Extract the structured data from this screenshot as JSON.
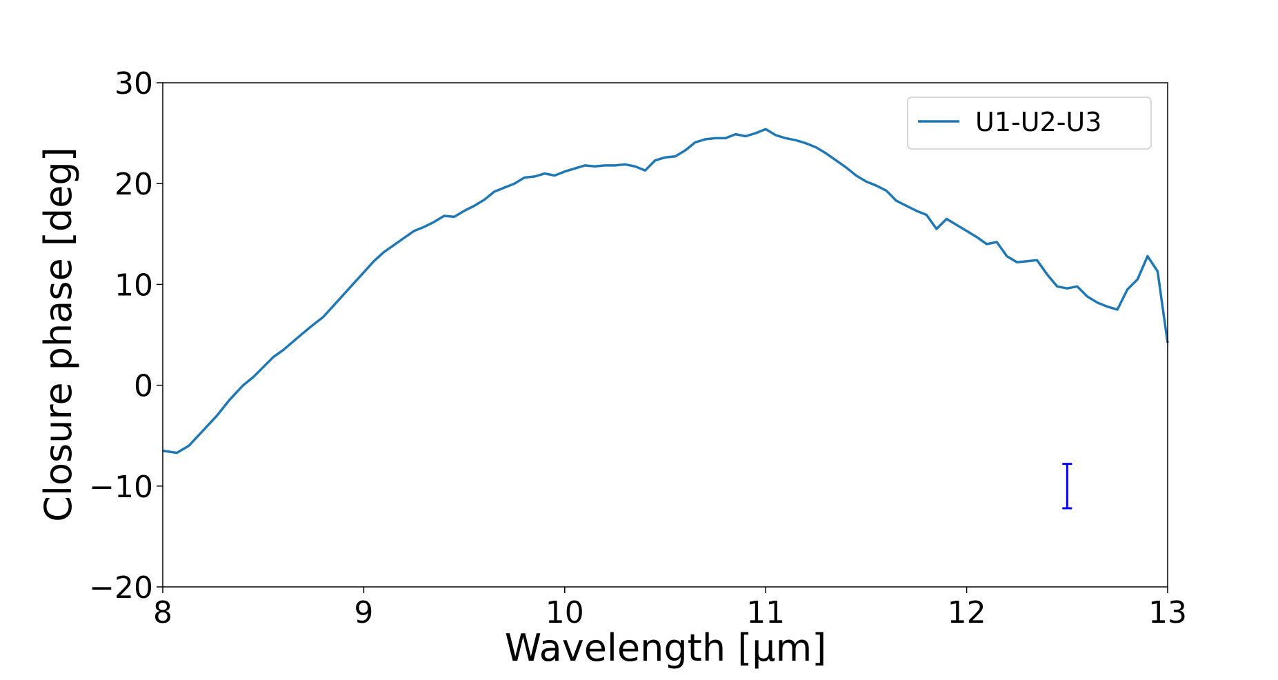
{
  "chart_data": {
    "type": "line",
    "title": "",
    "xlabel": "Wavelength [μm]",
    "ylabel": "Closure phase [deg]",
    "xlim": [
      8,
      13
    ],
    "ylim": [
      -20,
      30
    ],
    "x_ticks": [
      8,
      9,
      10,
      11,
      12,
      13
    ],
    "y_ticks": [
      -20,
      -10,
      0,
      10,
      20,
      30
    ],
    "x_tick_labels": [
      "8",
      "9",
      "10",
      "11",
      "12",
      "13"
    ],
    "y_tick_labels": [
      "−20",
      "−10",
      "0",
      "10",
      "20",
      "30"
    ],
    "grid": false,
    "legend_position": "top-right",
    "series": [
      {
        "name": "U1-U2-U3",
        "color": "#1f77b4",
        "x": [
          8.0,
          8.07,
          8.13,
          8.2,
          8.27,
          8.33,
          8.4,
          8.45,
          8.5,
          8.55,
          8.6,
          8.67,
          8.73,
          8.8,
          8.85,
          8.9,
          8.95,
          9.0,
          9.05,
          9.1,
          9.15,
          9.2,
          9.25,
          9.3,
          9.35,
          9.4,
          9.45,
          9.5,
          9.55,
          9.6,
          9.65,
          9.7,
          9.75,
          9.8,
          9.85,
          9.9,
          9.95,
          10.0,
          10.05,
          10.1,
          10.15,
          10.2,
          10.25,
          10.3,
          10.35,
          10.4,
          10.45,
          10.5,
          10.55,
          10.6,
          10.65,
          10.7,
          10.75,
          10.8,
          10.85,
          10.9,
          10.95,
          11.0,
          11.05,
          11.1,
          11.15,
          11.2,
          11.25,
          11.3,
          11.35,
          11.4,
          11.45,
          11.5,
          11.55,
          11.6,
          11.65,
          11.7,
          11.75,
          11.8,
          11.85,
          11.9,
          11.95,
          12.0,
          12.05,
          12.1,
          12.15,
          12.2,
          12.25,
          12.3,
          12.35,
          12.4,
          12.45,
          12.5,
          12.55,
          12.6,
          12.65,
          12.7,
          12.75,
          12.8,
          12.85,
          12.9,
          12.95,
          13.0
        ],
        "y": [
          -6.5,
          -6.7,
          -6.0,
          -4.5,
          -3.0,
          -1.5,
          0.0,
          0.8,
          1.8,
          2.8,
          3.5,
          4.7,
          5.7,
          6.8,
          7.9,
          9.0,
          10.1,
          11.2,
          12.3,
          13.2,
          13.9,
          14.6,
          15.3,
          15.7,
          16.2,
          16.8,
          16.7,
          17.3,
          17.8,
          18.4,
          19.2,
          19.6,
          20.0,
          20.6,
          20.7,
          21.0,
          20.8,
          21.2,
          21.5,
          21.8,
          21.7,
          21.8,
          21.8,
          21.9,
          21.7,
          21.3,
          22.3,
          22.6,
          22.7,
          23.3,
          24.1,
          24.4,
          24.5,
          24.5,
          24.9,
          24.7,
          25.0,
          25.4,
          24.8,
          24.5,
          24.3,
          24.0,
          23.6,
          23.0,
          22.3,
          21.6,
          20.8,
          20.2,
          19.8,
          19.3,
          18.3,
          17.8,
          17.3,
          16.9,
          15.5,
          16.5,
          15.9,
          15.3,
          14.7,
          14.0,
          14.2,
          12.8,
          12.2,
          12.3,
          12.4,
          11.0,
          9.8,
          9.6,
          9.8,
          8.8,
          8.2,
          7.8,
          7.5,
          9.5,
          10.5,
          12.8,
          11.3,
          4.2
        ]
      }
    ],
    "error_bar": {
      "x": 12.5,
      "y_low": -12.2,
      "y_high": -7.8,
      "color": "#0000ff"
    }
  }
}
